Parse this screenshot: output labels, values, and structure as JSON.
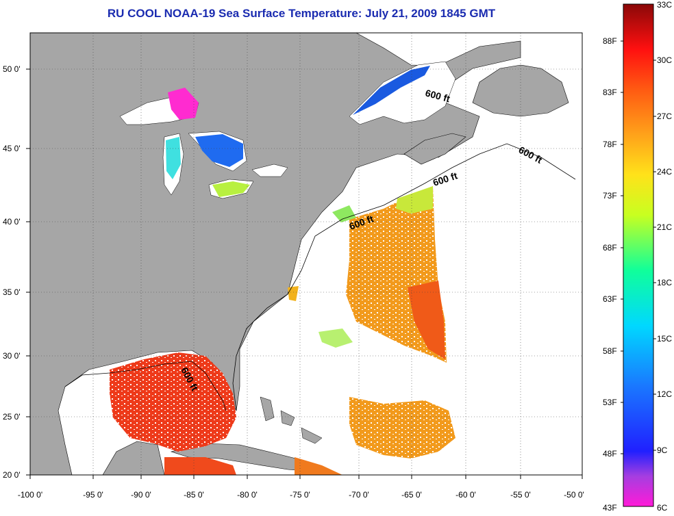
{
  "title": "RU COOL  NOAA-19  Sea Surface Temperature:  July 21, 2009 1845 GMT",
  "y_axis_labels": [
    "50 0'",
    "45 0'",
    "40 0'",
    "35 0'",
    "30 0'",
    "25 0'",
    "20 0'"
  ],
  "x_axis_labels": [
    "-100 0'",
    "-95 0'",
    "-90 0'",
    "-85 0'",
    "-80 0'",
    "-75 0'",
    "-70 0'",
    "-65 0'",
    "-60 0'",
    "-55 0'",
    "-50 0'"
  ],
  "isobath_labels": [
    "600 ft",
    "600 ft",
    "600 ft",
    "600 ft",
    "600 ft"
  ],
  "colorbar": {
    "celsius_labels": [
      "33C",
      "30C",
      "27C",
      "24C",
      "21C",
      "18C",
      "15C",
      "12C",
      "9C",
      "6C"
    ],
    "fahrenheit_labels": [
      "88F",
      "83F",
      "78F",
      "73F",
      "68F",
      "63F",
      "58F",
      "53F",
      "48F",
      "43F"
    ]
  },
  "colors": {
    "title": "#1a2bb0",
    "land": "#a6a6a6",
    "warm": "#ee3a1a",
    "orange": "#f29a1c",
    "cool": "#1a5ae0"
  }
}
